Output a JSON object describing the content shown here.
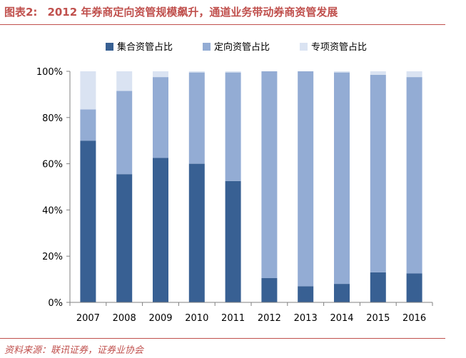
{
  "header": {
    "prefix": "图表2:",
    "title": "2012 年券商定向资管规模飙升，通道业务带动券商资管发展"
  },
  "source": "资料来源：联讯证券，证券业协会",
  "chart_data": {
    "type": "bar",
    "stacked": true,
    "categories": [
      "2007",
      "2008",
      "2009",
      "2010",
      "2011",
      "2012",
      "2013",
      "2014",
      "2015",
      "2016"
    ],
    "series": [
      {
        "name": "集合资管占比",
        "color": "#386093",
        "values": [
          70,
          55.5,
          62.5,
          60,
          52.5,
          10.5,
          7,
          8,
          13,
          12.5
        ]
      },
      {
        "name": "定向资管占比",
        "color": "#93acd4",
        "values": [
          13.5,
          36,
          35,
          39.5,
          47,
          89.5,
          93,
          91.5,
          85.5,
          85
        ]
      },
      {
        "name": "专项资管占比",
        "color": "#dae3f2",
        "values": [
          16.5,
          8.5,
          2.5,
          0.5,
          0.5,
          0,
          0,
          0.5,
          1.5,
          2.5
        ]
      }
    ],
    "yticks": [
      "0%",
      "20%",
      "40%",
      "60%",
      "80%",
      "100%"
    ],
    "ylim": [
      0,
      100
    ],
    "legend": "top",
    "grid": false
  }
}
